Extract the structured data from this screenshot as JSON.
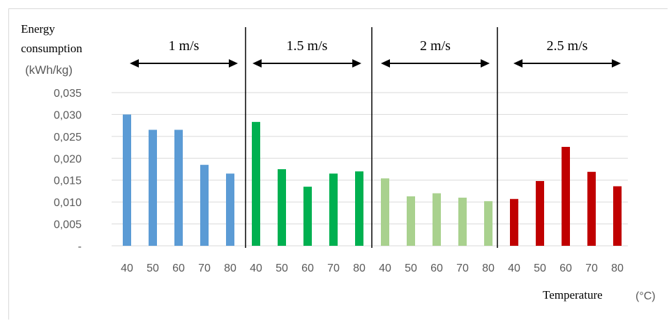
{
  "chart_data": {
    "type": "bar",
    "ylabel_lines": [
      "Energy",
      "consumption",
      "(kWh/kg)"
    ],
    "xlabel": "Temperature",
    "xlabel_unit": "(°C)",
    "ylim": [
      0,
      0.035
    ],
    "y_ticks": [
      "0,035",
      "0,030",
      "0,025",
      "0,020",
      "0,015",
      "0,010",
      "0,005",
      "-"
    ],
    "y_tick_values": [
      0.035,
      0.03,
      0.025,
      0.02,
      0.015,
      0.01,
      0.005,
      0
    ],
    "grid": true,
    "legend": "none",
    "groups": [
      {
        "label": "1 m/s",
        "color": "#5b9bd5",
        "categories": [
          "40",
          "50",
          "60",
          "70",
          "80"
        ],
        "values": [
          0.03,
          0.0265,
          0.0265,
          0.0185,
          0.0165
        ]
      },
      {
        "label": "1.5 m/s",
        "color": "#00b050",
        "categories": [
          "40",
          "50",
          "60",
          "70",
          "80"
        ],
        "values": [
          0.0283,
          0.0175,
          0.0135,
          0.0165,
          0.017
        ]
      },
      {
        "label": "2 m/s",
        "color": "#a9d18e",
        "categories": [
          "40",
          "50",
          "60",
          "70",
          "80"
        ],
        "values": [
          0.0154,
          0.0113,
          0.012,
          0.011,
          0.0102
        ]
      },
      {
        "label": "2.5 m/s",
        "color": "#c00000",
        "categories": [
          "40",
          "50",
          "60",
          "70",
          "80"
        ],
        "values": [
          0.0107,
          0.0148,
          0.0226,
          0.0169,
          0.0136
        ]
      }
    ]
  }
}
